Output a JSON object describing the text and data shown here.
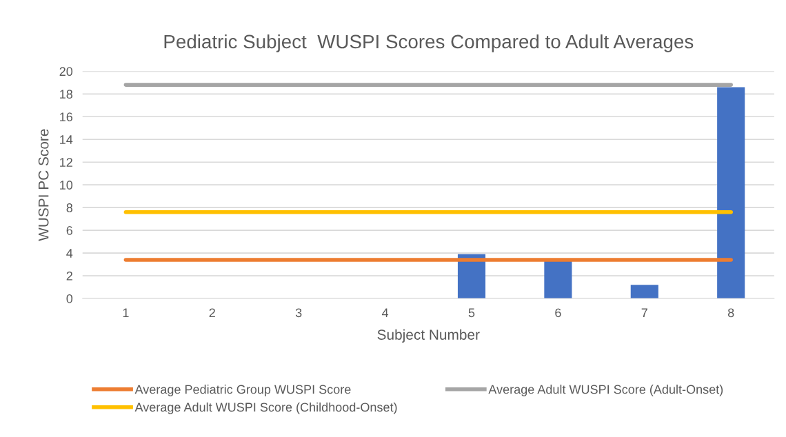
{
  "chart_data": {
    "type": "bar",
    "title": "Pediatric Subject  WUSPI Scores Compared to Adult Averages",
    "xlabel": "Subject Number",
    "ylabel": "WUSPI PC Score",
    "categories": [
      "1",
      "2",
      "3",
      "4",
      "5",
      "6",
      "7",
      "8"
    ],
    "series": [
      {
        "color": "#4472c4",
        "values": [
          0,
          0,
          0,
          0,
          3.9,
          3.3,
          1.2,
          18.6
        ]
      },
      {
        "type": "line",
        "name": "Average Pediatric Group WUSPI Score",
        "color": "#ed7d31",
        "values": [
          3.4,
          3.4,
          3.4,
          3.4,
          3.4,
          3.4,
          3.4,
          3.4
        ]
      },
      {
        "type": "line",
        "name": "Average Adult WUSPI Score (Adult-Onset)",
        "color": "#a5a5a5",
        "values": [
          18.8,
          18.8,
          18.8,
          18.8,
          18.8,
          18.8,
          18.8,
          18.8
        ]
      },
      {
        "type": "line",
        "name": "Average Adult WUSPI Score (Childhood-Onset)",
        "color": "#ffc000",
        "values": [
          7.6,
          7.6,
          7.6,
          7.6,
          7.6,
          7.6,
          7.6,
          7.6
        ]
      }
    ],
    "ylim": [
      0,
      20
    ],
    "yticks": [
      0,
      2,
      4,
      6,
      8,
      10,
      12,
      14,
      16,
      18,
      20
    ],
    "grid": "y",
    "legend": "bottom",
    "marker": "none",
    "line_style": "solid"
  }
}
